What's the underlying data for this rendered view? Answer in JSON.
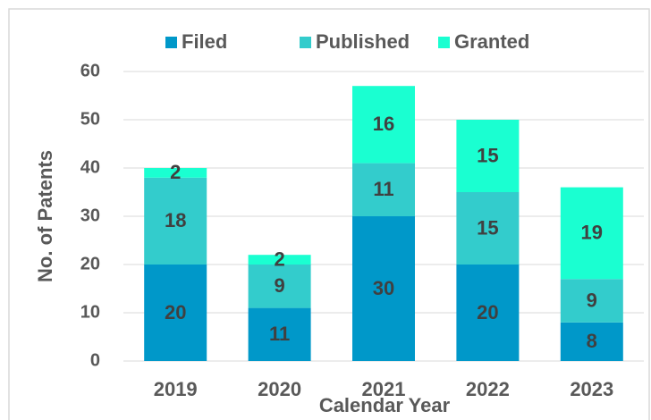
{
  "chart_data": {
    "type": "stacked_bar",
    "xlabel": "Calendar Year",
    "ylabel": "No. of Patents",
    "categories": [
      "2019",
      "2020",
      "2021",
      "2022",
      "2023"
    ],
    "series": [
      {
        "name": "Filed",
        "color": "#0098c9",
        "values": [
          20,
          11,
          30,
          20,
          8
        ]
      },
      {
        "name": "Published",
        "color": "#33cccc",
        "values": [
          18,
          9,
          11,
          15,
          9
        ]
      },
      {
        "name": "Granted",
        "color": "#1affd1",
        "values": [
          2,
          2,
          16,
          15,
          19
        ]
      }
    ],
    "ylim": [
      0,
      60
    ],
    "yticks": [
      0,
      10,
      20,
      30,
      40,
      50,
      60
    ],
    "grid": true,
    "legend": "top"
  }
}
